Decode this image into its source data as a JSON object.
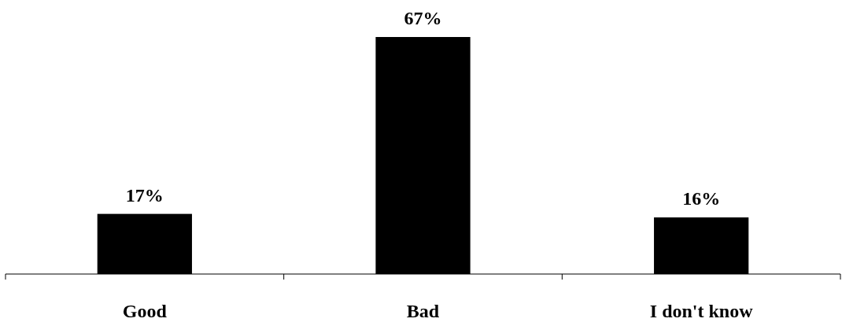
{
  "chart_data": {
    "type": "bar",
    "categories": [
      "Good",
      "Bad",
      "I don't know"
    ],
    "values": [
      17,
      67,
      16
    ],
    "value_labels": [
      "17%",
      "67%",
      "16%"
    ],
    "color": "#000000"
  }
}
